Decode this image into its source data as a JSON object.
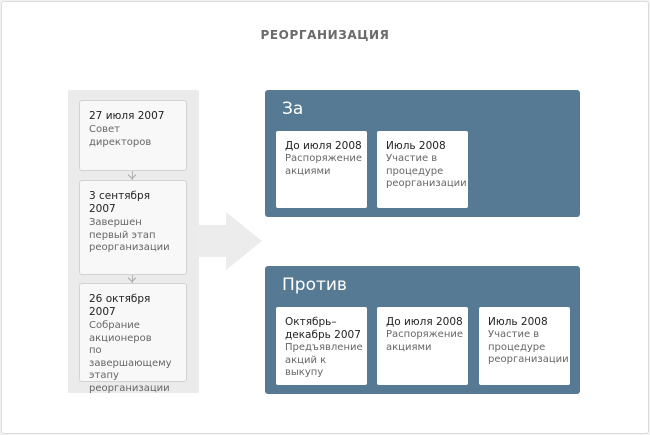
{
  "title": "РЕОРГАНИЗАЦИЯ",
  "timeline": [
    {
      "date": "27 июля 2007",
      "text": "Совет\nдиректоров"
    },
    {
      "date": "3 сентября 2007",
      "text": "Завершен\nпервый этап\nреорганизации"
    },
    {
      "date": "26 октября 2007",
      "text": "Собрание\nакционеров\nпо завершающему\nэтапу\nреорганизации"
    }
  ],
  "groups": {
    "za": {
      "label": "За",
      "cards": [
        {
          "date": "До июля 2008",
          "text": "Распоряжение\nакциями"
        },
        {
          "date": "Июль 2008",
          "text": "Участие в\nпроцедуре\nреорганизации"
        }
      ]
    },
    "protiv": {
      "label": "Против",
      "cards": [
        {
          "date": "Октябрь–\nдекабрь 2007",
          "text": "Предъявление\nакций к выкупу"
        },
        {
          "date": "До июля 2008",
          "text": "Распоряжение\nакциями"
        },
        {
          "date": "Июль 2008",
          "text": "Участие в\nпроцедуре\nреорганизации"
        }
      ]
    }
  },
  "colors": {
    "panel_blue": "#567a94",
    "card_bg": "#ffffff",
    "timeline_bg": "#ebebeb",
    "arrow": "#ececec"
  }
}
